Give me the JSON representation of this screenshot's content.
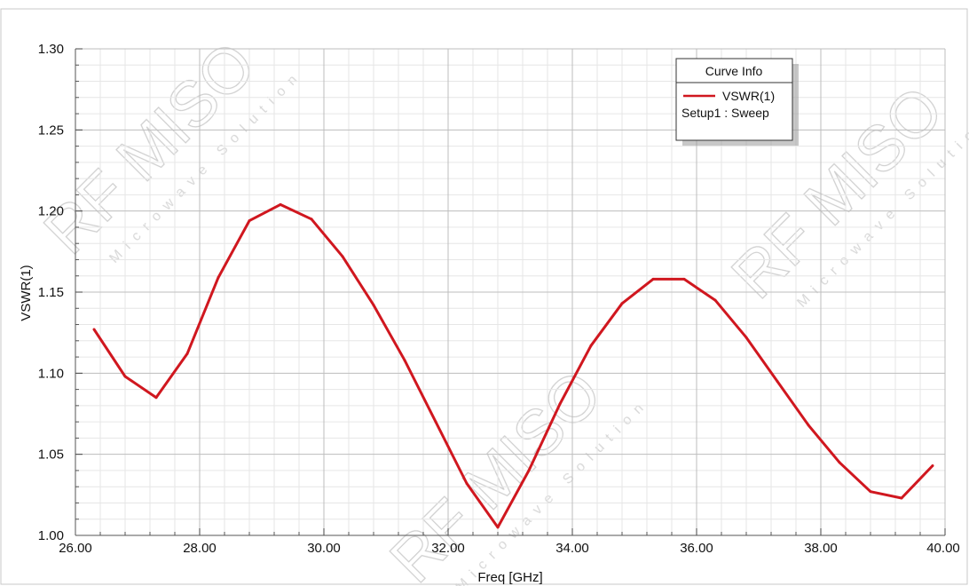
{
  "chart_data": {
    "type": "line",
    "xlabel": "Freq [GHz]",
    "ylabel": "VSWR(1)",
    "xlim": [
      26.0,
      40.0
    ],
    "ylim": [
      1.0,
      1.3
    ],
    "x_ticks": [
      "26.00",
      "28.00",
      "30.00",
      "32.00",
      "34.00",
      "36.00",
      "38.00",
      "40.00"
    ],
    "y_ticks": [
      "1.00",
      "1.05",
      "1.10",
      "1.15",
      "1.20",
      "1.25",
      "1.30"
    ],
    "x_tick_values": [
      26,
      28,
      30,
      32,
      34,
      36,
      38,
      40
    ],
    "y_tick_values": [
      1.0,
      1.05,
      1.1,
      1.15,
      1.2,
      1.25,
      1.3
    ],
    "grid": true,
    "legend": {
      "title": "Curve Info",
      "placement": "top-right",
      "entry_label": "VSWR(1)",
      "entry_sub": "Setup1 : Sweep"
    },
    "series": [
      {
        "name": "VSWR(1)",
        "color": "#d0171f",
        "x": [
          26.3,
          26.8,
          27.3,
          27.8,
          28.3,
          28.8,
          29.3,
          29.8,
          30.3,
          30.8,
          31.3,
          31.8,
          32.3,
          32.8,
          33.3,
          33.8,
          34.3,
          34.8,
          35.3,
          35.8,
          36.3,
          36.8,
          37.3,
          37.8,
          38.3,
          38.8,
          39.3,
          39.8
        ],
        "y": [
          1.127,
          1.098,
          1.085,
          1.112,
          1.159,
          1.194,
          1.204,
          1.195,
          1.172,
          1.142,
          1.108,
          1.07,
          1.032,
          1.005,
          1.04,
          1.081,
          1.117,
          1.143,
          1.158,
          1.158,
          1.145,
          1.122,
          1.095,
          1.068,
          1.045,
          1.027,
          1.023,
          1.043
        ]
      }
    ]
  },
  "watermark": {
    "brand": "RF MISO",
    "tagline": "Microwave Solution"
  }
}
